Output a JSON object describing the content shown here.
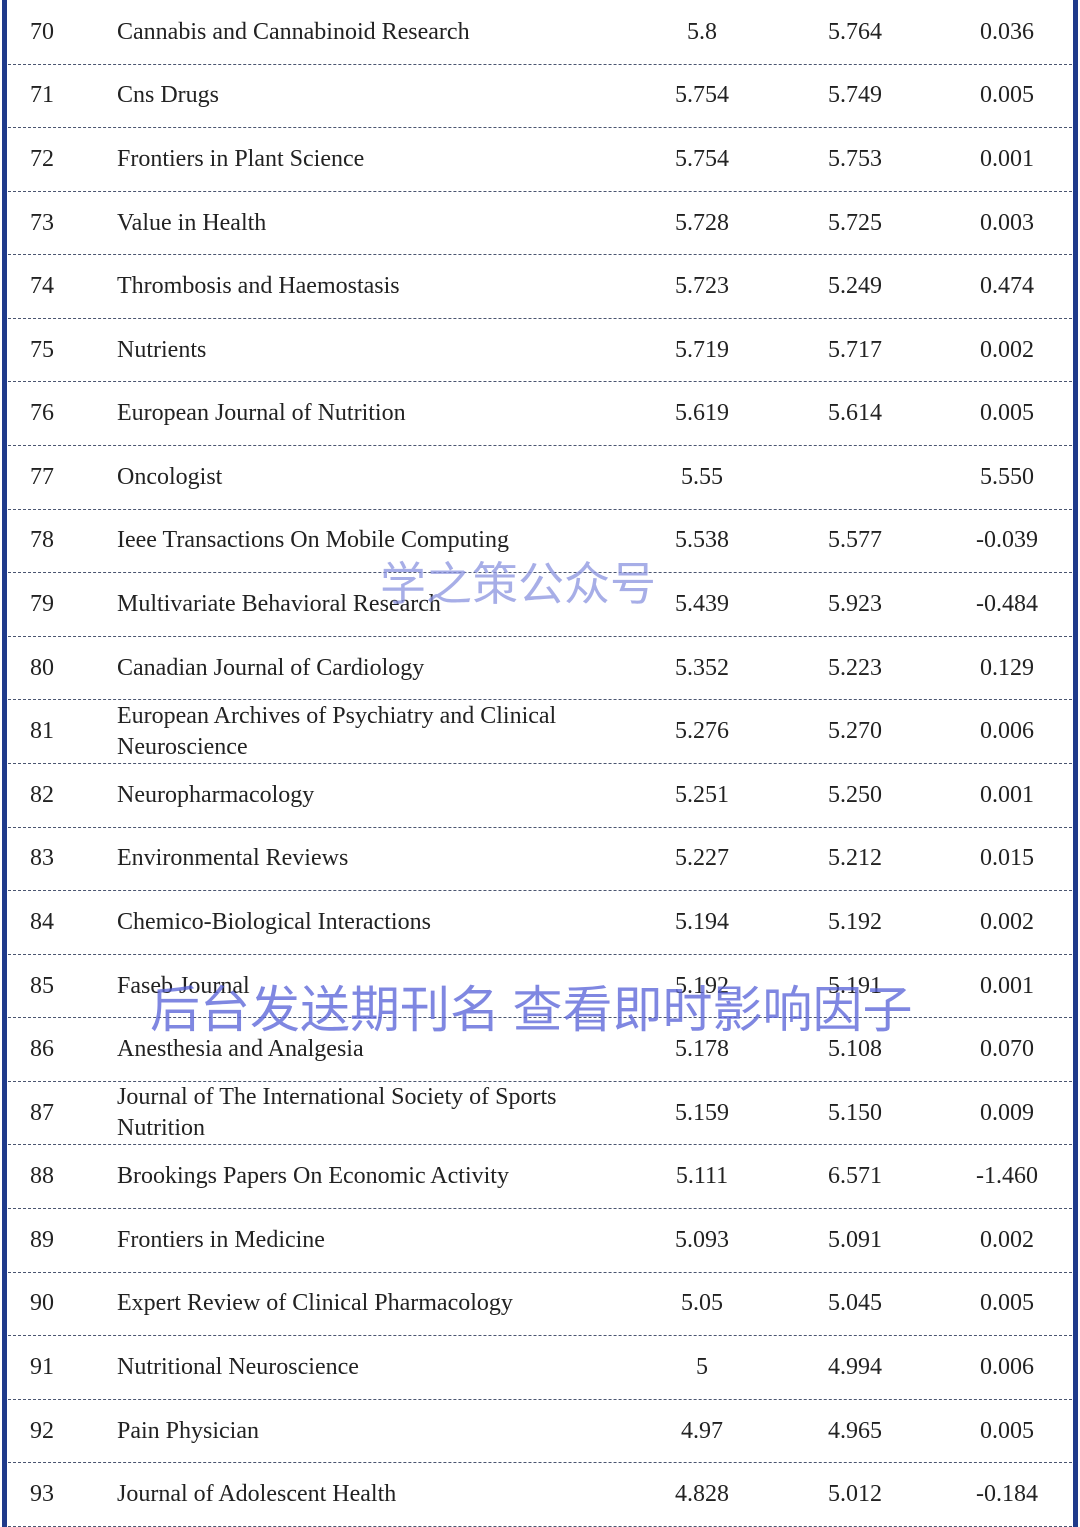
{
  "table": {
    "rows": [
      [
        "70",
        "Cannabis and Cannabinoid Research",
        "5.8",
        "5.764",
        "0.036"
      ],
      [
        "71",
        "Cns Drugs",
        "5.754",
        "5.749",
        "0.005"
      ],
      [
        "72",
        "Frontiers in Plant Science",
        "5.754",
        "5.753",
        "0.001"
      ],
      [
        "73",
        "Value in Health",
        "5.728",
        "5.725",
        "0.003"
      ],
      [
        "74",
        "Thrombosis and Haemostasis",
        "5.723",
        "5.249",
        "0.474"
      ],
      [
        "75",
        "Nutrients",
        "5.719",
        "5.717",
        "0.002"
      ],
      [
        "76",
        "European Journal of Nutrition",
        "5.619",
        "5.614",
        "0.005"
      ],
      [
        "77",
        "Oncologist",
        "5.55",
        null,
        "5.550"
      ],
      [
        "78",
        "Ieee Transactions On Mobile Computing",
        "5.538",
        "5.577",
        "-0.039"
      ],
      [
        "79",
        "Multivariate Behavioral Research",
        "5.439",
        "5.923",
        "-0.484"
      ],
      [
        "80",
        "Canadian Journal of Cardiology",
        "5.352",
        "5.223",
        "0.129"
      ],
      [
        "81",
        "European Archives of Psychiatry and Clinical Neuroscience",
        "5.276",
        "5.270",
        "0.006"
      ],
      [
        "82",
        "Neuropharmacology",
        "5.251",
        "5.250",
        "0.001"
      ],
      [
        "83",
        "Environmental Reviews",
        "5.227",
        "5.212",
        "0.015"
      ],
      [
        "84",
        "Chemico-Biological Interactions",
        "5.194",
        "5.192",
        "0.002"
      ],
      [
        "85",
        "Faseb Journal",
        "5.192",
        "5.191",
        "0.001"
      ],
      [
        "86",
        "Anesthesia and Analgesia",
        "5.178",
        "5.108",
        "0.070"
      ],
      [
        "87",
        "Journal of The International Society of Sports Nutrition",
        "5.159",
        "5.150",
        "0.009"
      ],
      [
        "88",
        "Brookings Papers On Economic Activity",
        "5.111",
        "6.571",
        "-1.460"
      ],
      [
        "89",
        "Frontiers in Medicine",
        "5.093",
        "5.091",
        "0.002"
      ],
      [
        "90",
        "Expert Review of Clinical Pharmacology",
        "5.05",
        "5.045",
        "0.005"
      ],
      [
        "91",
        "Nutritional Neuroscience",
        "5",
        "4.994",
        "0.006"
      ],
      [
        "92",
        "Pain Physician",
        "4.97",
        "4.965",
        "0.005"
      ],
      [
        "93",
        "Journal of Adolescent Health",
        "4.828",
        "5.012",
        "-0.184"
      ]
    ]
  },
  "watermarks": [
    "学之策公众号",
    "后台发送期刊名 查看即时影响因子"
  ]
}
